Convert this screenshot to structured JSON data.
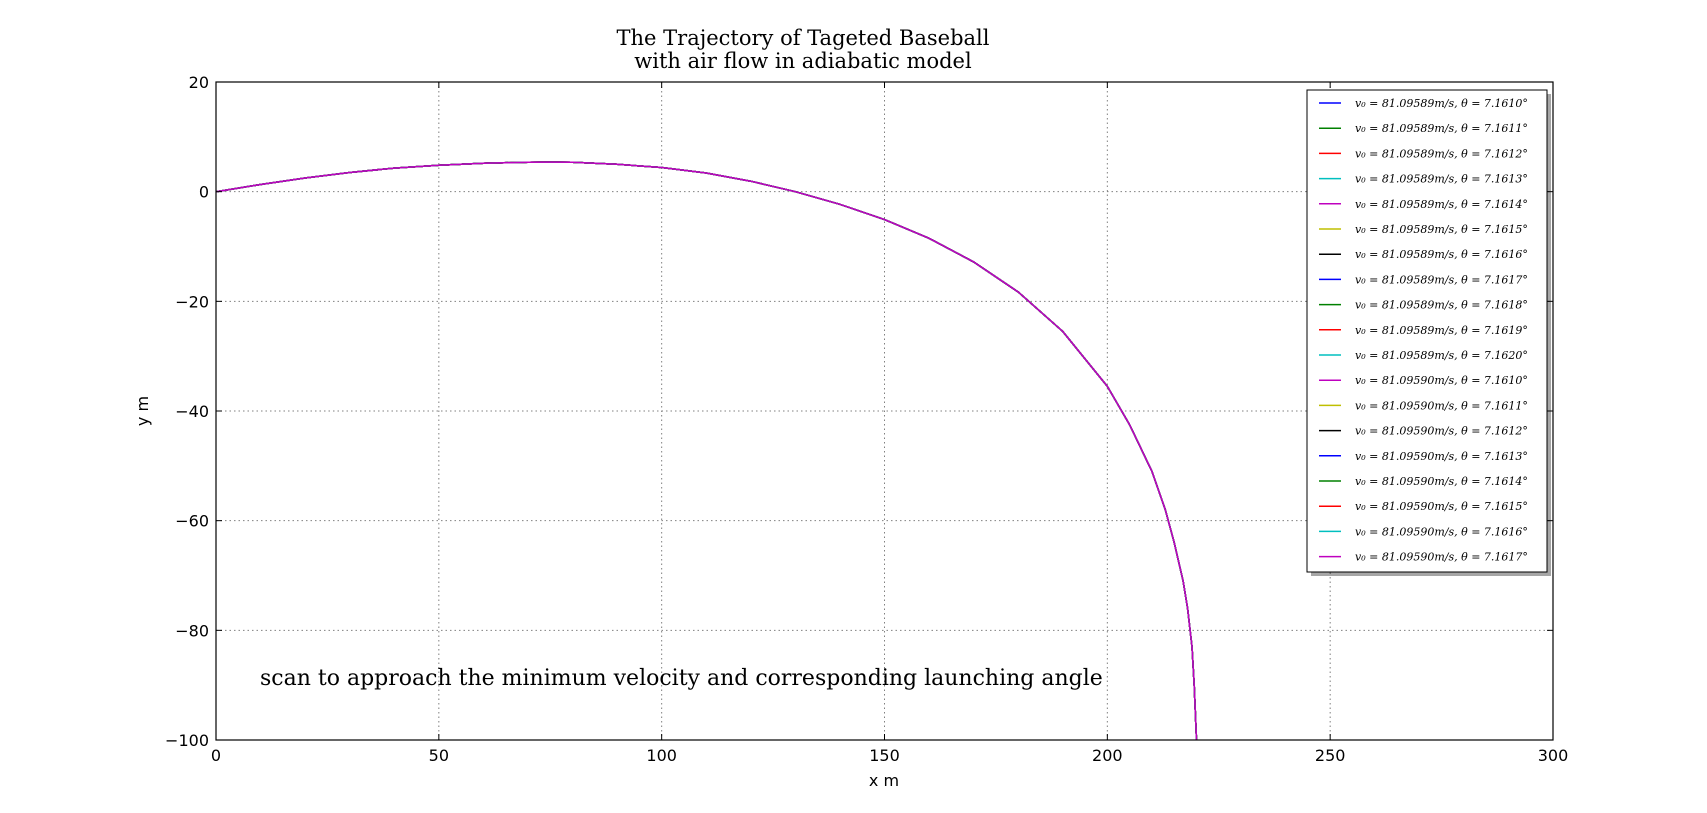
{
  "colors": {
    "background": "#ffffff",
    "axes": "#000000",
    "grid": "#808080",
    "text": "#000000"
  },
  "chart_data": {
    "type": "line",
    "title": "The Trajectory of Tageted Baseball",
    "subtitle": "with air flow in adiabatic model",
    "xlabel": "x m",
    "ylabel": "y m",
    "xlim": [
      0,
      300
    ],
    "ylim": [
      -100,
      20
    ],
    "xticks": [
      0,
      50,
      100,
      150,
      200,
      250,
      300
    ],
    "yticks": [
      20,
      0,
      -20,
      -40,
      -60,
      -80,
      -100
    ],
    "xtick_labels": [
      "0",
      "50",
      "100",
      "150",
      "200",
      "250",
      "300"
    ],
    "ytick_labels": [
      "20",
      "0",
      "−20",
      "−40",
      "−60",
      "−80",
      "−100"
    ],
    "grid": true,
    "grid_style": "dotted",
    "legend_position": "top-right",
    "annotation": "scan to approach the minimum velocity and corresponding launching angle",
    "series": [
      {
        "name": "v₀ = 81.09589m/s, θ = 7.1610°",
        "color": "#0000ff"
      },
      {
        "name": "v₀ = 81.09589m/s, θ = 7.1611°",
        "color": "#008000"
      },
      {
        "name": "v₀ = 81.09589m/s, θ = 7.1612°",
        "color": "#ff0000"
      },
      {
        "name": "v₀ = 81.09589m/s, θ = 7.1613°",
        "color": "#00bfbf"
      },
      {
        "name": "v₀ = 81.09589m/s, θ = 7.1614°",
        "color": "#bf00bf"
      },
      {
        "name": "v₀ = 81.09589m/s, θ = 7.1615°",
        "color": "#bfbf00"
      },
      {
        "name": "v₀ = 81.09589m/s, θ = 7.1616°",
        "color": "#000000"
      },
      {
        "name": "v₀ = 81.09589m/s, θ = 7.1617°",
        "color": "#0000ff"
      },
      {
        "name": "v₀ = 81.09589m/s, θ = 7.1618°",
        "color": "#008000"
      },
      {
        "name": "v₀ = 81.09589m/s, θ = 7.1619°",
        "color": "#ff0000"
      },
      {
        "name": "v₀ = 81.09589m/s, θ = 7.1620°",
        "color": "#00bfbf"
      },
      {
        "name": "v₀ = 81.09590m/s, θ = 7.1610°",
        "color": "#bf00bf"
      },
      {
        "name": "v₀ = 81.09590m/s, θ = 7.1611°",
        "color": "#bfbf00"
      },
      {
        "name": "v₀ = 81.09590m/s, θ = 7.1612°",
        "color": "#000000"
      },
      {
        "name": "v₀ = 81.09590m/s, θ = 7.1613°",
        "color": "#0000ff"
      },
      {
        "name": "v₀ = 81.09590m/s, θ = 7.1614°",
        "color": "#008000"
      },
      {
        "name": "v₀ = 81.09590m/s, θ = 7.1615°",
        "color": "#ff0000"
      },
      {
        "name": "v₀ = 81.09590m/s, θ = 7.1616°",
        "color": "#00bfbf"
      },
      {
        "name": "v₀ = 81.09590m/s, θ = 7.1617°",
        "color": "#bf00bf"
      }
    ],
    "trajectory": {
      "x": [
        0,
        10,
        20,
        30,
        40,
        50,
        60,
        70,
        75,
        80,
        90,
        100,
        110,
        120,
        130,
        140,
        150,
        160,
        170,
        180,
        190,
        200,
        205,
        210,
        213,
        215,
        217,
        218,
        219,
        219.5,
        220
      ],
      "y": [
        0,
        1.3,
        2.5,
        3.5,
        4.3,
        4.8,
        5.2,
        5.35,
        5.4,
        5.35,
        5.0,
        4.4,
        3.4,
        1.9,
        0,
        -2.3,
        -5.1,
        -8.5,
        -12.8,
        -18.3,
        -25.5,
        -35.5,
        -42.5,
        -51,
        -58,
        -64,
        -71,
        -76,
        -83,
        -90,
        -100
      ]
    }
  }
}
